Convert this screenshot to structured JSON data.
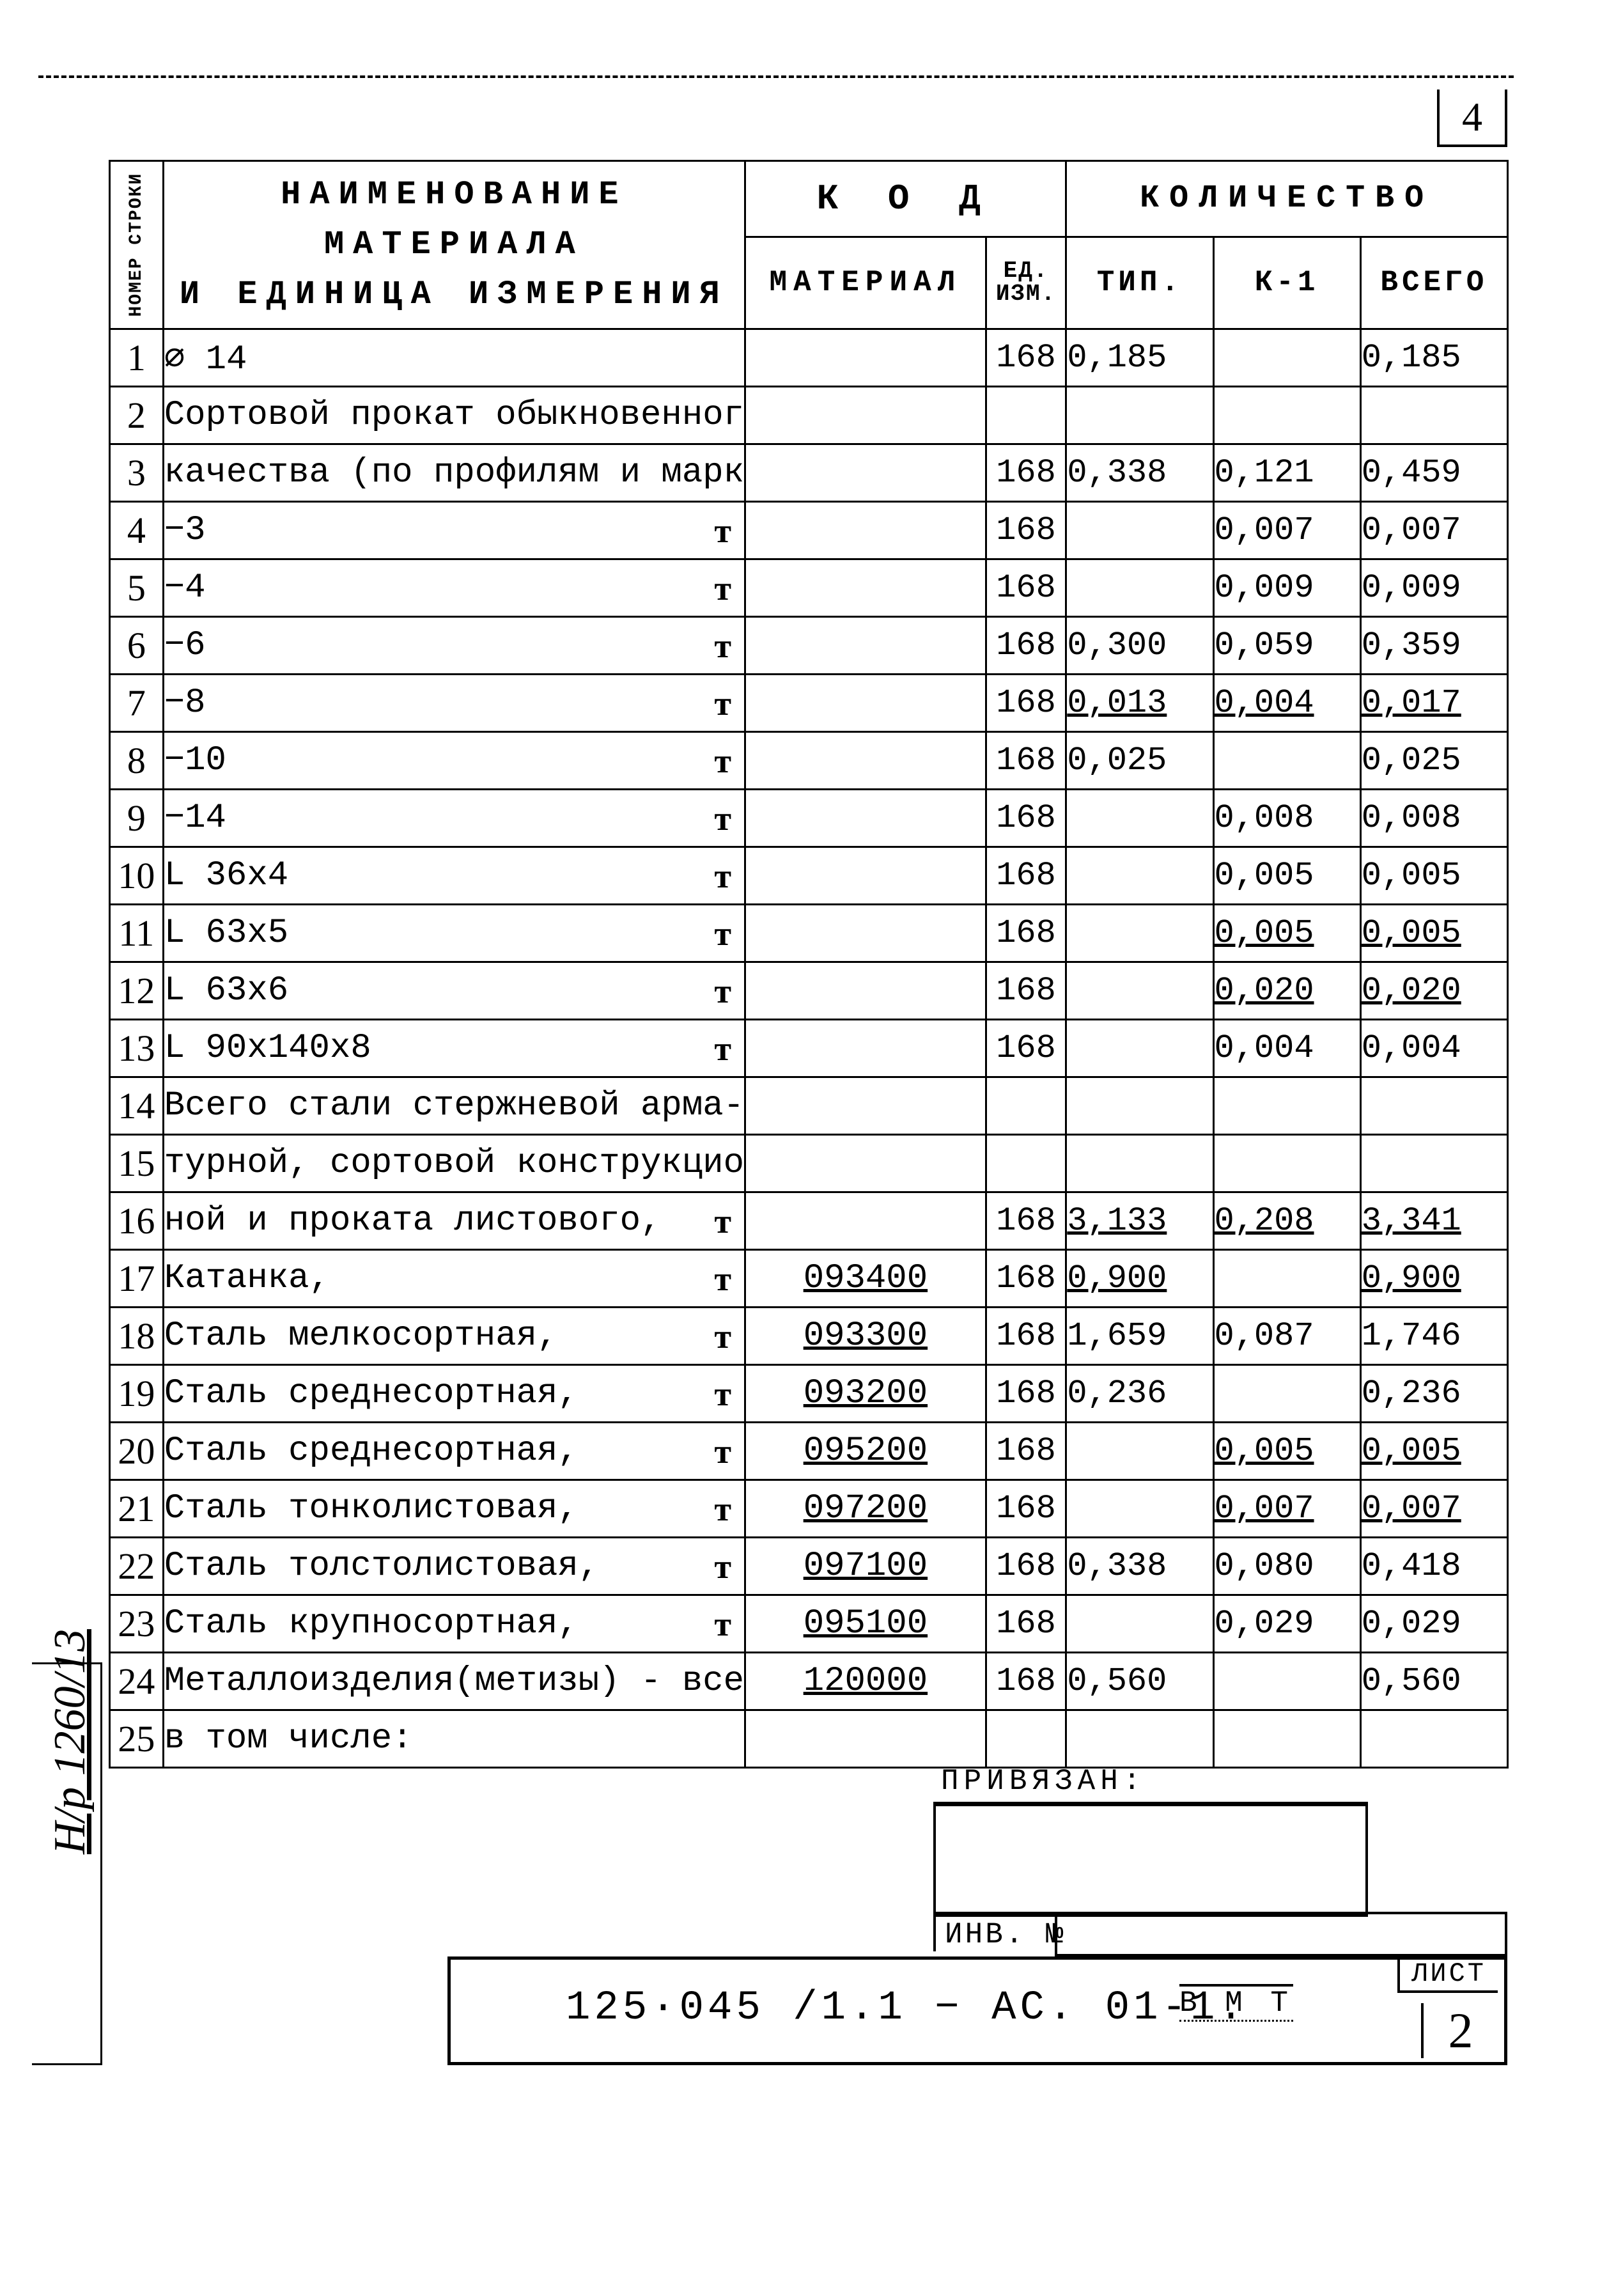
{
  "page_number": "4",
  "header": {
    "row_no": "НОМЕР\nСТРОКИ",
    "name_l1": "НАИМЕНОВАНИЕ   МАТЕРИАЛА",
    "name_l2": "И  ЕДИНИЦА   ИЗМЕРЕНИЯ",
    "kod": "К О Д",
    "qty": "КОЛИЧЕСТВО",
    "material": "МАТЕРИАЛ",
    "ed_l1": "ЕД.",
    "ed_l2": "ИЗМ.",
    "tip": "ТИП.",
    "k1": "К-1",
    "total": "ВСЕГО"
  },
  "rows": [
    {
      "n": "1",
      "name": "⌀ 14",
      "unit": "",
      "kod": "",
      "ed": "168",
      "tip": "0,185",
      "k1": "",
      "tot": "0,185"
    },
    {
      "n": "2",
      "name": "Сортовой прокат обыкновенного",
      "unit": "",
      "kod": "",
      "ed": "",
      "tip": "",
      "k1": "",
      "tot": ""
    },
    {
      "n": "3",
      "name": "качества (по профилям и маркам)",
      "unit": "",
      "kod": "",
      "ed": "168",
      "tip": "0,338",
      "k1": "0,121",
      "tot": "0,459"
    },
    {
      "n": "4",
      "name": "−3",
      "unit": "т",
      "kod": "",
      "ed": "168",
      "tip": "",
      "k1": "0,007",
      "tot": "0,007"
    },
    {
      "n": "5",
      "name": "−4",
      "unit": "т",
      "kod": "",
      "ed": "168",
      "tip": "",
      "k1": "0,009",
      "tot": "0,009"
    },
    {
      "n": "6",
      "name": "−6",
      "unit": "т",
      "kod": "",
      "ed": "168",
      "tip": "0,300",
      "k1": "0,059",
      "tot": "0,359"
    },
    {
      "n": "7",
      "name": "−8",
      "unit": "т",
      "kod": "",
      "ed": "168",
      "tip": "0,013",
      "k1": "0,004",
      "tot": "0,017",
      "ul": true
    },
    {
      "n": "8",
      "name": "−10",
      "unit": "т",
      "kod": "",
      "ed": "168",
      "tip": "0,025",
      "k1": "",
      "tot": "0,025"
    },
    {
      "n": "9",
      "name": "−14",
      "unit": "т",
      "kod": "",
      "ed": "168",
      "tip": "",
      "k1": "0,008",
      "tot": "0,008"
    },
    {
      "n": "10",
      "name": "L 36х4",
      "unit": "т",
      "kod": "",
      "ed": "168",
      "tip": "",
      "k1": "0,005",
      "tot": "0,005"
    },
    {
      "n": "11",
      "name": "L 63х5",
      "unit": "т",
      "kod": "",
      "ed": "168",
      "tip": "",
      "k1": "0,005",
      "tot": "0,005",
      "ul": true
    },
    {
      "n": "12",
      "name": "L 63х6",
      "unit": "т",
      "kod": "",
      "ed": "168",
      "tip": "",
      "k1": "0,020",
      "tot": "0,020",
      "ul": true
    },
    {
      "n": "13",
      "name": "L 90х140х8",
      "unit": "т",
      "kod": "",
      "ed": "168",
      "tip": "",
      "k1": "0,004",
      "tot": "0,004"
    },
    {
      "n": "14",
      "name": "Всего стали стержневой арма-",
      "unit": "",
      "kod": "",
      "ed": "",
      "tip": "",
      "k1": "",
      "tot": ""
    },
    {
      "n": "15",
      "name": "турной, сортовой конструкцион-",
      "unit": "",
      "kod": "",
      "ed": "",
      "tip": "",
      "k1": "",
      "tot": ""
    },
    {
      "n": "16",
      "name": "ной и проката листового,",
      "unit": "т",
      "kod": "",
      "ed": "168",
      "tip": "3,133",
      "k1": "0,208",
      "tot": "3,341",
      "ul": true
    },
    {
      "n": "17",
      "name": "Катанка,",
      "unit": "т",
      "kod": "093400",
      "ed": "168",
      "tip": "0,900",
      "k1": "",
      "tot": "0,900",
      "ul": true
    },
    {
      "n": "18",
      "name": "Сталь мелкосортная,",
      "unit": "т",
      "kod": "093300",
      "ed": "168",
      "tip": "1,659",
      "k1": "0,087",
      "tot": "1,746"
    },
    {
      "n": "19",
      "name": "Сталь среднесортная,",
      "unit": "т",
      "kod": "093200",
      "ed": "168",
      "tip": "0,236",
      "k1": "",
      "tot": "0,236"
    },
    {
      "n": "20",
      "name": "Сталь среднесортная,",
      "unit": "т",
      "kod": "095200",
      "ed": "168",
      "tip": "",
      "k1": "0,005",
      "tot": "0,005",
      "ul": true
    },
    {
      "n": "21",
      "name": "Сталь тонколистовая,",
      "unit": "т",
      "kod": "097200",
      "ed": "168",
      "tip": "",
      "k1": "0,007",
      "tot": "0,007",
      "ul": true
    },
    {
      "n": "22",
      "name": "Сталь толстолистовая,",
      "unit": "т",
      "kod": "097100",
      "ed": "168",
      "tip": "0,338",
      "k1": "0,080",
      "tot": "0,418"
    },
    {
      "n": "23",
      "name": "Сталь крупносортная,",
      "unit": "т",
      "kod": "095100",
      "ed": "168",
      "tip": "",
      "k1": "0,029",
      "tot": "0,029"
    },
    {
      "n": "24",
      "name": "Металлоизделия(метизы) - всего",
      "unit": "",
      "kod": "120000",
      "ed": "168",
      "tip": "0,560",
      "k1": "",
      "tot": "0,560"
    },
    {
      "n": "25",
      "name": "в том числе:",
      "unit": "",
      "kod": "",
      "ed": "",
      "tip": "",
      "k1": "",
      "tot": ""
    }
  ],
  "footer": {
    "priv": "Привязан:",
    "inv": "Инв. №",
    "drawing_no": "125·045 /1.1 − АС. 01-1.",
    "vm": "В М Т",
    "sheet_label": "ЛИСТ",
    "sheet_no": "2",
    "left_stamp": "Н/р 1260/13"
  }
}
